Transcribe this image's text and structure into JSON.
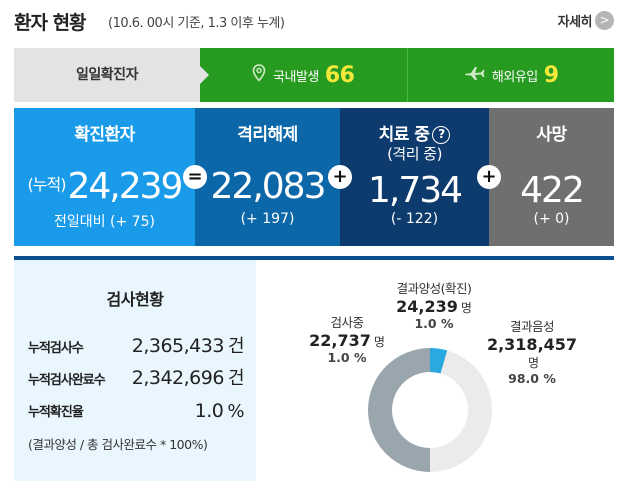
{
  "header": {
    "title": "환자 현황",
    "subtitle": "(10.6. 00시 기준, 1.3 이후 누계)",
    "more_label": "자세히",
    "more_icon": "chevron-right-icon"
  },
  "daily": {
    "label": "일일확진자",
    "domestic": {
      "label": "국내발생",
      "value": "66",
      "icon": "location-pin-icon"
    },
    "overseas": {
      "label": "해외유입",
      "value": "9",
      "icon": "airplane-icon"
    }
  },
  "stats": {
    "confirmed": {
      "label": "확진환자",
      "prefix": "(누적)",
      "value": "24,239",
      "delta": "전일대비 (+ 75)"
    },
    "released": {
      "label": "격리해제",
      "value": "22,083",
      "delta": "(+ 197)"
    },
    "treating": {
      "label": "치료 중",
      "sublabel": "(격리 중)",
      "value": "1,734",
      "delta": "(- 122)",
      "help_icon": "?"
    },
    "deaths": {
      "label": "사망",
      "value": "422",
      "delta": "(+ 0)"
    },
    "operators": [
      "=",
      "+",
      "+",
      "+"
    ],
    "colors": {
      "confirmed": "#1a9bea",
      "released": "#0b67a8",
      "treating": "#0e3b6d",
      "deaths": "#6f6f6f"
    }
  },
  "testing": {
    "title": "검사현황",
    "rows": [
      {
        "label": "누적검사수",
        "value": "2,365,433",
        "unit": "건"
      },
      {
        "label": "누적검사완료수",
        "value": "2,342,696",
        "unit": "건"
      },
      {
        "label": "누적확진율",
        "value": "1.0",
        "unit": "%"
      }
    ],
    "note": "(결과양성 / 총 검사완료수 * 100%)"
  },
  "donut": {
    "positive": {
      "label": "결과양성(확진)",
      "value": "24,239",
      "unit": "명",
      "percent": "1.0 %",
      "fraction": 0.01,
      "color": "#2aa8e0"
    },
    "negative": {
      "label": "결과음성",
      "value": "2,318,457",
      "unit": "명",
      "percent": "98.0 %",
      "fraction": 0.98,
      "color": "#ebebeb"
    },
    "testing": {
      "label": "검사중",
      "value": "22,737",
      "unit": "명",
      "percent": "1.0 %",
      "fraction": 0.01,
      "color": "#9aa6ad"
    }
  }
}
